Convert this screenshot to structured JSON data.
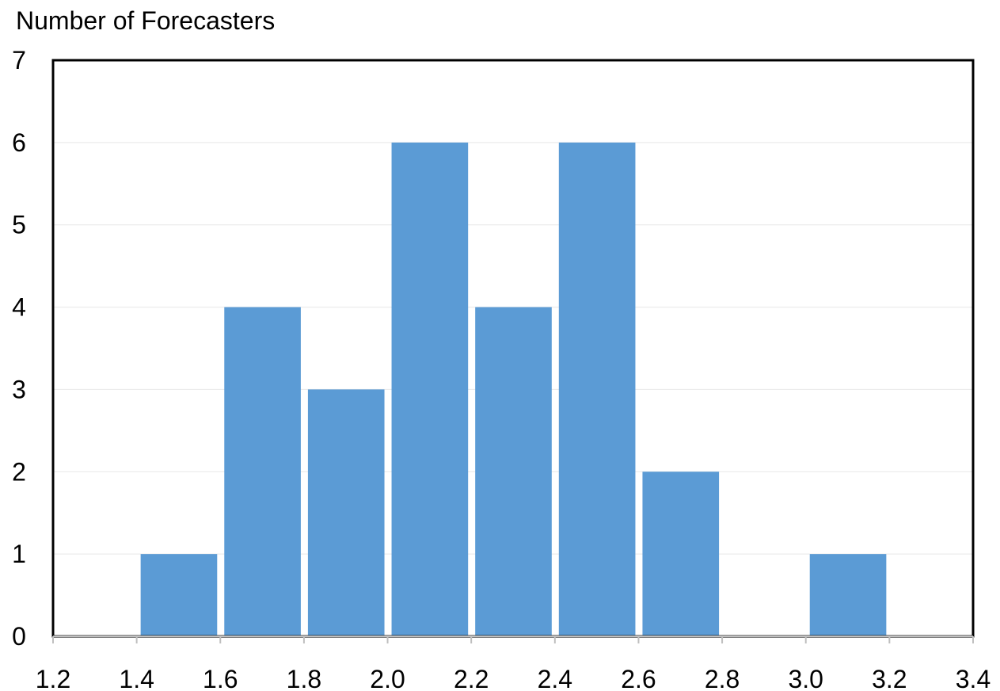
{
  "chart_data": {
    "type": "bar",
    "title": "",
    "ylabel": "Number of Forecasters",
    "xlabel": "",
    "bins": [
      {
        "x0": 1.4,
        "x1": 1.6,
        "value": 1
      },
      {
        "x0": 1.6,
        "x1": 1.8,
        "value": 4
      },
      {
        "x0": 1.8,
        "x1": 2.0,
        "value": 3
      },
      {
        "x0": 2.0,
        "x1": 2.2,
        "value": 6
      },
      {
        "x0": 2.2,
        "x1": 2.4,
        "value": 4
      },
      {
        "x0": 2.4,
        "x1": 2.6,
        "value": 6
      },
      {
        "x0": 2.6,
        "x1": 2.8,
        "value": 2
      },
      {
        "x0": 2.8,
        "x1": 3.0,
        "value": 0
      },
      {
        "x0": 3.0,
        "x1": 3.2,
        "value": 1
      },
      {
        "x0": 3.2,
        "x1": 3.4,
        "value": 0
      }
    ],
    "xlim": [
      1.2,
      3.4
    ],
    "ylim": [
      0,
      7
    ],
    "xticks": [
      "1.2",
      "1.4",
      "1.6",
      "1.8",
      "2.0",
      "2.2",
      "2.4",
      "2.6",
      "2.8",
      "3.0",
      "3.2",
      "3.4"
    ],
    "yticks": [
      "0",
      "1",
      "2",
      "3",
      "4",
      "5",
      "6",
      "7"
    ],
    "grid": true,
    "bar_color": "#5B9BD5",
    "grid_color": "#E8E8E8"
  }
}
